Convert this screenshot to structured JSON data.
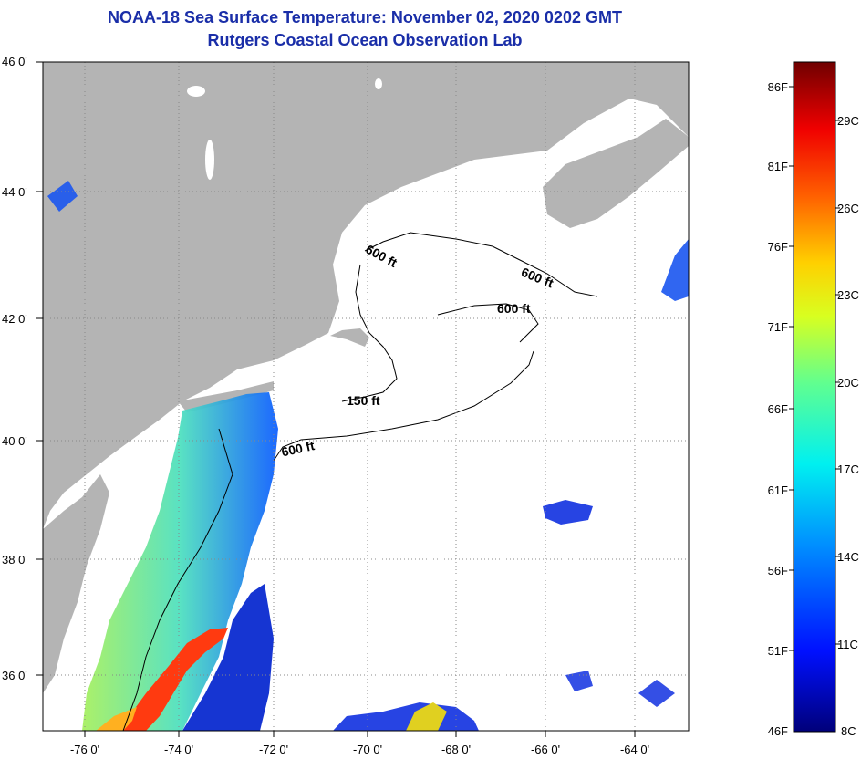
{
  "title": "NOAA-18 Sea Surface Temperature:  November 02, 2020 0202 GMT",
  "subtitle": "Rutgers Coastal Ocean Observation Lab",
  "map": {
    "lon_range": [
      -77,
      -63
    ],
    "lat_range": [
      35,
      46
    ],
    "lat_ticks": [
      "46 0'",
      "44 0'",
      "42 0'",
      "40 0'",
      "38 0'",
      "36 0'"
    ],
    "lon_ticks": [
      "-76 0'",
      "-74 0'",
      "-72 0'",
      "-70 0'",
      "-68 0'",
      "-66 0'",
      "-64 0'"
    ],
    "depth_labels": [
      "600 ft",
      "600 ft",
      "600 ft",
      "150 ft",
      "600 ft"
    ],
    "colors": {
      "land": "#b4b4b4",
      "cloud": "#ffffff",
      "contour": "#000000"
    }
  },
  "colorbar": {
    "fahrenheit": [
      "86F",
      "81F",
      "76F",
      "71F",
      "66F",
      "61F",
      "56F",
      "51F",
      "46F"
    ],
    "celsius": [
      "29C",
      "26C",
      "23C",
      "20C",
      "17C",
      "14C",
      "11C",
      "8C"
    ]
  }
}
